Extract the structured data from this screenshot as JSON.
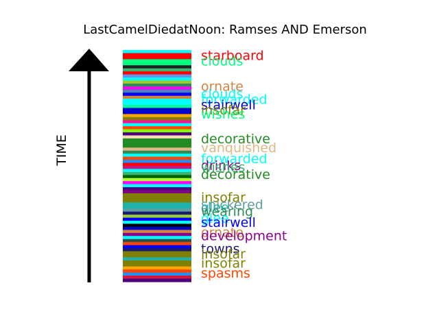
{
  "chart_data": {
    "type": "bar",
    "title": "LastCamelDiedatNoon: Ramses AND Emerson",
    "ylabel": "TIME",
    "grid": false,
    "stripes": [
      "#00ffff",
      "#ff0000",
      "#ff0000",
      "#00ff7f",
      "#00ff7f",
      "#1f1f1f",
      "#3cb371",
      "#ff0000",
      "#6495ed",
      "#00ffff",
      "#9acd32",
      "#2e8b57",
      "#ff00ff",
      "#4682b4",
      "#0000ff",
      "#cd853f",
      "#00ffff",
      "#00ffff",
      "#00fa9a",
      "#0000cd",
      "#0000cd",
      "#ffa500",
      "#808000",
      "#ff1493",
      "#00ffff",
      "#ff4500",
      "#7fff00",
      "#4b0082",
      "#f5deb3",
      "#228b22",
      "#228b22",
      "#228b22",
      "#deb887",
      "#2e8b57",
      "#00ffff",
      "#ff4500",
      "#1e90ff",
      "#ff0000",
      "#c71585",
      "#00ffff",
      "#3cb371",
      "#006400",
      "#adff2f",
      "#ff00ff",
      "#00ffff",
      "#4b0082",
      "#800080",
      "#808000",
      "#808000",
      "#808000",
      "#20b2aa",
      "#20b2aa",
      "#5f9ea0",
      "#191970",
      "#9acd32",
      "#0000ff",
      "#00ffff",
      "#000000",
      "#0000cd",
      "#cd853f",
      "#8b008b",
      "#00ffff",
      "#2f4f4f",
      "#ff4500",
      "#0000ff",
      "#191970",
      "#808000",
      "#808000",
      "#20b2aa",
      "#808000",
      "#808000",
      "#ffa500",
      "#ff4500",
      "#1e90ff",
      "#dc143c",
      "#4b0082"
    ],
    "labels": [
      {
        "text": "starboard",
        "color": "#ff0000",
        "pos": 0.022
      },
      {
        "text": "clouds",
        "color": "#00ff7f",
        "pos": 0.046
      },
      {
        "text": "ornate",
        "color": "#cd853f",
        "pos": 0.155
      },
      {
        "text": "clouds",
        "color": "#00ffff",
        "pos": 0.188
      },
      {
        "text": "forwarded",
        "color": "#00ffff",
        "pos": 0.211
      },
      {
        "text": "stairwell",
        "color": "#0000cd",
        "pos": 0.235
      },
      {
        "text": "insofar",
        "color": "#808000",
        "pos": 0.257
      },
      {
        "text": "wishes",
        "color": "#00ff7f",
        "pos": 0.275
      },
      {
        "text": "decorative",
        "color": "#228b22",
        "pos": 0.382
      },
      {
        "text": "vanquished",
        "color": "#deb887",
        "pos": 0.42
      },
      {
        "text": "forwarded",
        "color": "#00ffff",
        "pos": 0.468
      },
      {
        "text": "drinks",
        "color": "#800080",
        "pos": 0.497
      },
      {
        "text": "wishes",
        "color": "#3cb371",
        "pos": 0.505
      },
      {
        "text": "decorative",
        "color": "#228b22",
        "pos": 0.535
      },
      {
        "text": "insofar",
        "color": "#808000",
        "pos": 0.635
      },
      {
        "text": "snickered",
        "color": "#5f9ea0",
        "pos": 0.665
      },
      {
        "text": "glee",
        "color": "#20b2aa",
        "pos": 0.677
      },
      {
        "text": "wearing",
        "color": "#2e8b57",
        "pos": 0.695
      },
      {
        "text": "glee",
        "color": "#00ffff",
        "pos": 0.725
      },
      {
        "text": "stairwell",
        "color": "#0000ff",
        "pos": 0.742
      },
      {
        "text": "ornate",
        "color": "#cd853f",
        "pos": 0.785
      },
      {
        "text": "development",
        "color": "#8b008b",
        "pos": 0.8
      },
      {
        "text": "towns",
        "color": "#191970",
        "pos": 0.857
      },
      {
        "text": "insofar",
        "color": "#808000",
        "pos": 0.878
      },
      {
        "text": "insofar",
        "color": "#808000",
        "pos": 0.918
      },
      {
        "text": "spasms",
        "color": "#ff4500",
        "pos": 0.962
      }
    ]
  }
}
